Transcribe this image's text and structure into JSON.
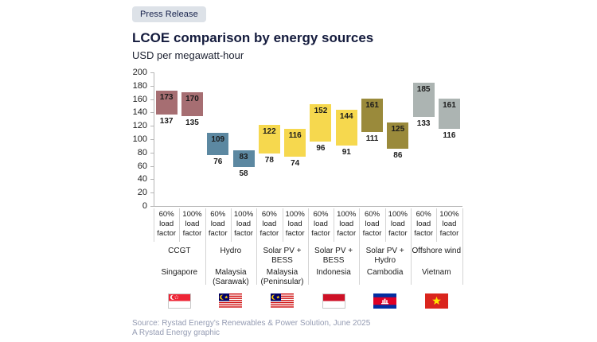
{
  "badge": {
    "label": "Press Release"
  },
  "chart_data": {
    "type": "bar",
    "variant": "floating-range-bars",
    "title": "LCOE comparison by energy sources",
    "subtitle": "USD per megawatt-hour",
    "ylabel": "USD per megawatt-hour",
    "ylim": [
      0,
      200
    ],
    "ytick_step": 20,
    "grid": false,
    "bar_labels": [
      "60% load factor",
      "100% load factor"
    ],
    "groups": [
      {
        "source": "CCGT",
        "country": "Singapore",
        "flag": "sg",
        "color": "#a66e72",
        "bars": [
          {
            "load": "60% load factor",
            "low": 137,
            "high": 173
          },
          {
            "load": "100% load factor",
            "low": 135,
            "high": 170
          }
        ]
      },
      {
        "source": "Hydro",
        "country": "Malaysia (Sarawak)",
        "flag": "my",
        "color": "#5c88a1",
        "bars": [
          {
            "load": "60% load factor",
            "low": 76,
            "high": 109
          },
          {
            "load": "100% load factor",
            "low": 58,
            "high": 83
          }
        ]
      },
      {
        "source": "Solar PV + BESS",
        "country": "Malaysia (Peninsular)",
        "flag": "my",
        "color": "#f6d84e",
        "bars": [
          {
            "load": "60% load factor",
            "low": 78,
            "high": 122
          },
          {
            "load": "100% load factor",
            "low": 74,
            "high": 116
          }
        ]
      },
      {
        "source": "Solar PV + BESS",
        "country": "Indonesia",
        "flag": "id",
        "color": "#f6d84e",
        "bars": [
          {
            "load": "60% load factor",
            "low": 96,
            "high": 152
          },
          {
            "load": "100% load factor",
            "low": 91,
            "high": 144
          }
        ]
      },
      {
        "source": "Solar PV + Hydro",
        "country": "Cambodia",
        "flag": "kh",
        "color": "#9a8a3b",
        "bars": [
          {
            "load": "60% load factor",
            "low": 111,
            "high": 161
          },
          {
            "load": "100% load factor",
            "low": 86,
            "high": 125
          }
        ]
      },
      {
        "source": "Offshore wind",
        "country": "Vietnam",
        "flag": "vn",
        "color": "#acb4b2",
        "bars": [
          {
            "load": "60% load factor",
            "low": 133,
            "high": 185
          },
          {
            "load": "100% load factor",
            "low": 116,
            "high": 161
          }
        ]
      }
    ]
  },
  "footer": {
    "source": "Source: Rystad Energy's Renewables & Power Solution, June 2025",
    "credit": "A Rystad Energy graphic"
  }
}
